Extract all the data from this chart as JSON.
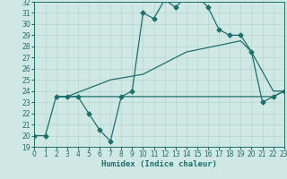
{
  "xlabel": "Humidex (Indice chaleur)",
  "xlim": [
    0,
    23
  ],
  "ylim": [
    19,
    32
  ],
  "xticks": [
    0,
    1,
    2,
    3,
    4,
    5,
    6,
    7,
    8,
    9,
    10,
    11,
    12,
    13,
    14,
    15,
    16,
    17,
    18,
    19,
    20,
    21,
    22,
    23
  ],
  "yticks": [
    19,
    20,
    21,
    22,
    23,
    24,
    25,
    26,
    27,
    28,
    29,
    30,
    31,
    32
  ],
  "bg_color": "#d0e8e4",
  "line_color": "#1e6e6e",
  "grid_color": "#b4d4d0",
  "line1_x": [
    0,
    1,
    2,
    3,
    4,
    5,
    6,
    7,
    8,
    9,
    10,
    11,
    12,
    13,
    14,
    15,
    16,
    17,
    18,
    19,
    20,
    21,
    22,
    23
  ],
  "line1_y": [
    20,
    20,
    23.5,
    23.5,
    23.5,
    22.0,
    20.5,
    19.5,
    23.5,
    24.0,
    31.0,
    30.5,
    32.2,
    31.5,
    32.5,
    32.5,
    31.5,
    29.5,
    29.0,
    29.0,
    27.5,
    23.0,
    23.5,
    24.0
  ],
  "line2_x": [
    2,
    3,
    7,
    10,
    14,
    19,
    20,
    22,
    23
  ],
  "line2_y": [
    23.5,
    23.5,
    25.0,
    25.5,
    27.5,
    28.5,
    27.5,
    24.0,
    24.0
  ],
  "line3_x": [
    2,
    22,
    23
  ],
  "line3_y": [
    23.5,
    23.5,
    24.0
  ],
  "marker": "D",
  "markersize": 2.5,
  "linewidth": 0.9,
  "tick_fontsize": 5.5,
  "xlabel_fontsize": 6.5
}
